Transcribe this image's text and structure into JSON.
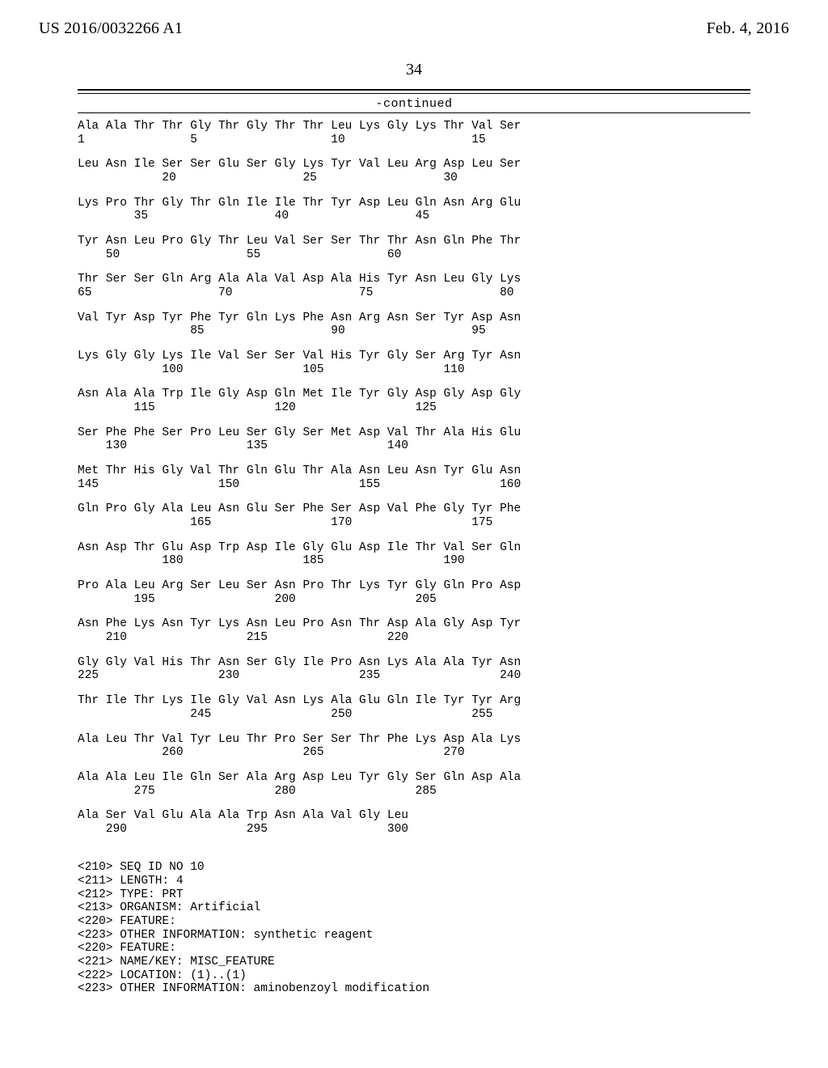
{
  "header": {
    "pubnum": "US 2016/0032266 A1",
    "date": "Feb. 4, 2016"
  },
  "pagenumber": "34",
  "continued_label": "-continued",
  "seq_blocks": [
    {
      "aa": "Ala Ala Thr Thr Gly Thr Gly Thr Thr Leu Lys Gly Lys Thr Val Ser",
      "nums": "1               5                   10                  15"
    },
    {
      "aa": "Leu Asn Ile Ser Ser Glu Ser Gly Lys Tyr Val Leu Arg Asp Leu Ser",
      "nums": "            20                  25                  30"
    },
    {
      "aa": "Lys Pro Thr Gly Thr Gln Ile Ile Thr Tyr Asp Leu Gln Asn Arg Glu",
      "nums": "        35                  40                  45"
    },
    {
      "aa": "Tyr Asn Leu Pro Gly Thr Leu Val Ser Ser Thr Thr Asn Gln Phe Thr",
      "nums": "    50                  55                  60"
    },
    {
      "aa": "Thr Ser Ser Gln Arg Ala Ala Val Asp Ala His Tyr Asn Leu Gly Lys",
      "nums": "65                  70                  75                  80"
    },
    {
      "aa": "Val Tyr Asp Tyr Phe Tyr Gln Lys Phe Asn Arg Asn Ser Tyr Asp Asn",
      "nums": "                85                  90                  95"
    },
    {
      "aa": "Lys Gly Gly Lys Ile Val Ser Ser Val His Tyr Gly Ser Arg Tyr Asn",
      "nums": "            100                 105                 110"
    },
    {
      "aa": "Asn Ala Ala Trp Ile Gly Asp Gln Met Ile Tyr Gly Asp Gly Asp Gly",
      "nums": "        115                 120                 125"
    },
    {
      "aa": "Ser Phe Phe Ser Pro Leu Ser Gly Ser Met Asp Val Thr Ala His Glu",
      "nums": "    130                 135                 140"
    },
    {
      "aa": "Met Thr His Gly Val Thr Gln Glu Thr Ala Asn Leu Asn Tyr Glu Asn",
      "nums": "145                 150                 155                 160"
    },
    {
      "aa": "Gln Pro Gly Ala Leu Asn Glu Ser Phe Ser Asp Val Phe Gly Tyr Phe",
      "nums": "                165                 170                 175"
    },
    {
      "aa": "Asn Asp Thr Glu Asp Trp Asp Ile Gly Glu Asp Ile Thr Val Ser Gln",
      "nums": "            180                 185                 190"
    },
    {
      "aa": "Pro Ala Leu Arg Ser Leu Ser Asn Pro Thr Lys Tyr Gly Gln Pro Asp",
      "nums": "        195                 200                 205"
    },
    {
      "aa": "Asn Phe Lys Asn Tyr Lys Asn Leu Pro Asn Thr Asp Ala Gly Asp Tyr",
      "nums": "    210                 215                 220"
    },
    {
      "aa": "Gly Gly Val His Thr Asn Ser Gly Ile Pro Asn Lys Ala Ala Tyr Asn",
      "nums": "225                 230                 235                 240"
    },
    {
      "aa": "Thr Ile Thr Lys Ile Gly Val Asn Lys Ala Glu Gln Ile Tyr Tyr Arg",
      "nums": "                245                 250                 255"
    },
    {
      "aa": "Ala Leu Thr Val Tyr Leu Thr Pro Ser Ser Thr Phe Lys Asp Ala Lys",
      "nums": "            260                 265                 270"
    },
    {
      "aa": "Ala Ala Leu Ile Gln Ser Ala Arg Asp Leu Tyr Gly Ser Gln Asp Ala",
      "nums": "        275                 280                 285"
    },
    {
      "aa": "Ala Ser Val Glu Ala Ala Trp Asn Ala Val Gly Leu",
      "nums": "    290                 295                 300"
    }
  ],
  "annot": [
    "<210> SEQ ID NO 10",
    "<211> LENGTH: 4",
    "<212> TYPE: PRT",
    "<213> ORGANISM: Artificial",
    "<220> FEATURE:",
    "<223> OTHER INFORMATION: synthetic reagent",
    "<220> FEATURE:",
    "<221> NAME/KEY: MISC_FEATURE",
    "<222> LOCATION: (1)..(1)",
    "<223> OTHER INFORMATION: aminobenzoyl modification"
  ]
}
